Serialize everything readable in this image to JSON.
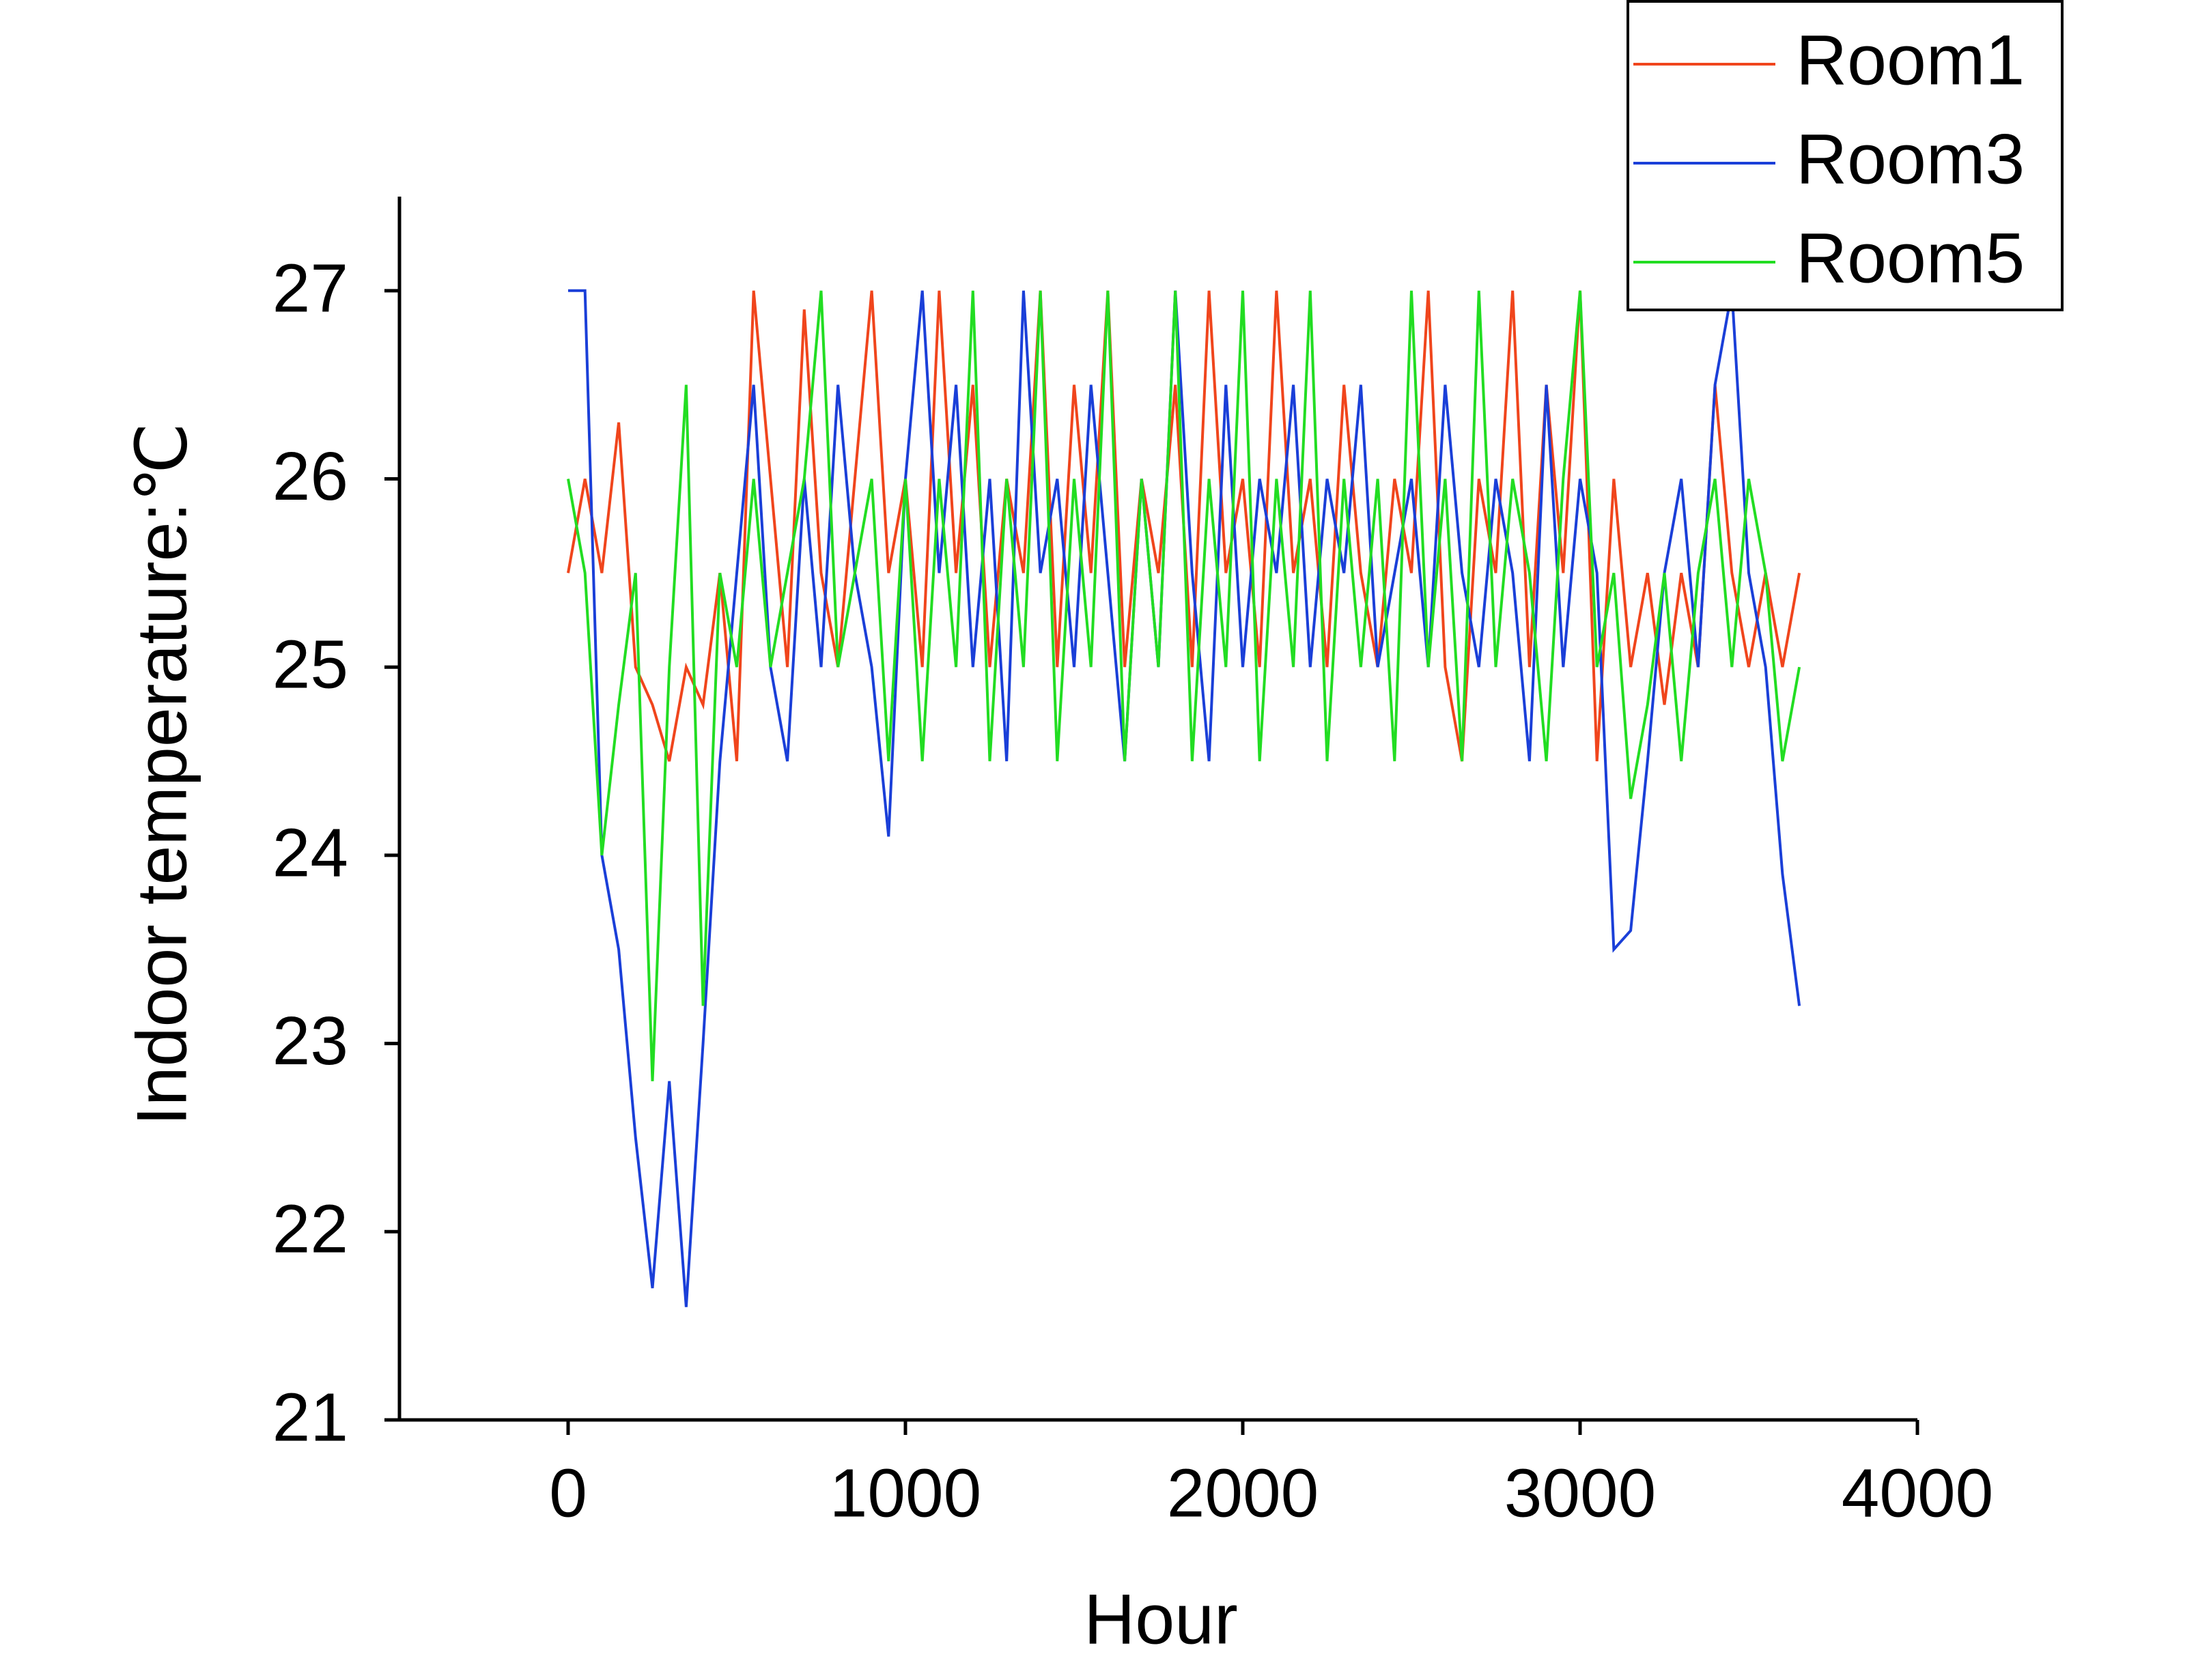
{
  "chart_data": {
    "type": "line",
    "x_label": "Hour",
    "y_label": "Indoor temperature:℃",
    "x": [
      0,
      50,
      100,
      150,
      200,
      250,
      300,
      350,
      400,
      450,
      500,
      550,
      600,
      650,
      700,
      750,
      800,
      850,
      900,
      950,
      1000,
      1050,
      1100,
      1150,
      1200,
      1250,
      1300,
      1350,
      1400,
      1450,
      1500,
      1550,
      1600,
      1650,
      1700,
      1750,
      1800,
      1850,
      1900,
      1950,
      2000,
      2050,
      2100,
      2150,
      2200,
      2250,
      2300,
      2350,
      2400,
      2450,
      2500,
      2550,
      2600,
      2650,
      2700,
      2750,
      2800,
      2850,
      2900,
      2950,
      3000,
      3050,
      3100,
      3150,
      3200,
      3250,
      3300,
      3350,
      3400,
      3450,
      3500,
      3550,
      3600,
      3650
    ],
    "series": [
      {
        "name": "Room1",
        "color": "#f0451c",
        "values": [
          25.5,
          26,
          25.5,
          26.3,
          25,
          24.8,
          24.5,
          25,
          24.8,
          25.5,
          24.5,
          27,
          26,
          25,
          26.9,
          25.5,
          25,
          26,
          27,
          25.5,
          26,
          25,
          27,
          25.5,
          26.5,
          25,
          26,
          25.5,
          27,
          25,
          26.5,
          25.5,
          27,
          25,
          26,
          25.5,
          26.5,
          25,
          27,
          25.5,
          26,
          25,
          27,
          25.5,
          26,
          25,
          26.5,
          25.5,
          25,
          26,
          25.5,
          27,
          25,
          24.5,
          26,
          25.5,
          27,
          25,
          26.5,
          25.5,
          27,
          24.5,
          26,
          25,
          25.5,
          24.8,
          25.5,
          25,
          26.5,
          25.5,
          25,
          25.5,
          25,
          25.5
        ]
      },
      {
        "name": "Room3",
        "color": "#1a3fd8",
        "values": [
          27,
          27,
          24,
          23.5,
          22.5,
          21.7,
          22.8,
          21.6,
          23,
          24.5,
          25.5,
          26.5,
          25,
          24.5,
          26,
          25,
          26.5,
          25.5,
          25,
          24.1,
          26,
          27,
          25.5,
          26.5,
          25,
          26,
          24.5,
          27,
          25.5,
          26,
          25,
          26.5,
          25.5,
          24.5,
          26,
          25,
          27,
          25.5,
          24.5,
          26.5,
          25,
          26,
          25.5,
          26.5,
          25,
          26,
          25.5,
          26.5,
          25,
          25.5,
          26,
          25,
          26.5,
          25.5,
          25,
          26,
          25.5,
          24.5,
          26.5,
          25,
          26,
          25.5,
          23.5,
          23.6,
          24.5,
          25.5,
          26,
          25,
          26.5,
          27,
          25.5,
          25,
          23.9,
          23.2
        ]
      },
      {
        "name": "Room5",
        "color": "#22dd22",
        "values": [
          26,
          25.5,
          24,
          24.8,
          25.5,
          22.8,
          25,
          26.5,
          23.2,
          25.5,
          25,
          26,
          25,
          25.5,
          26,
          27,
          25,
          25.5,
          26,
          24.5,
          26,
          24.5,
          26,
          25,
          27,
          24.5,
          26,
          25,
          27,
          24.5,
          26,
          25,
          27,
          24.5,
          26,
          25,
          27,
          24.5,
          26,
          25,
          27,
          24.5,
          26,
          25,
          27,
          24.5,
          26,
          25,
          26,
          24.5,
          27,
          25,
          26,
          24.5,
          27,
          25,
          26,
          25.5,
          24.5,
          26,
          27,
          25,
          25.5,
          24.3,
          24.8,
          25.5,
          24.5,
          25.5,
          26,
          25,
          26,
          25.5,
          24.5,
          25
        ]
      }
    ],
    "xlim": [
      -500,
      4000
    ],
    "xticks": [
      0,
      1000,
      2000,
      3000,
      4000
    ],
    "ylim": [
      21,
      27.5
    ],
    "yticks": [
      21,
      22,
      23,
      24,
      25,
      26,
      27
    ],
    "grid": false,
    "legend": "upper right"
  }
}
